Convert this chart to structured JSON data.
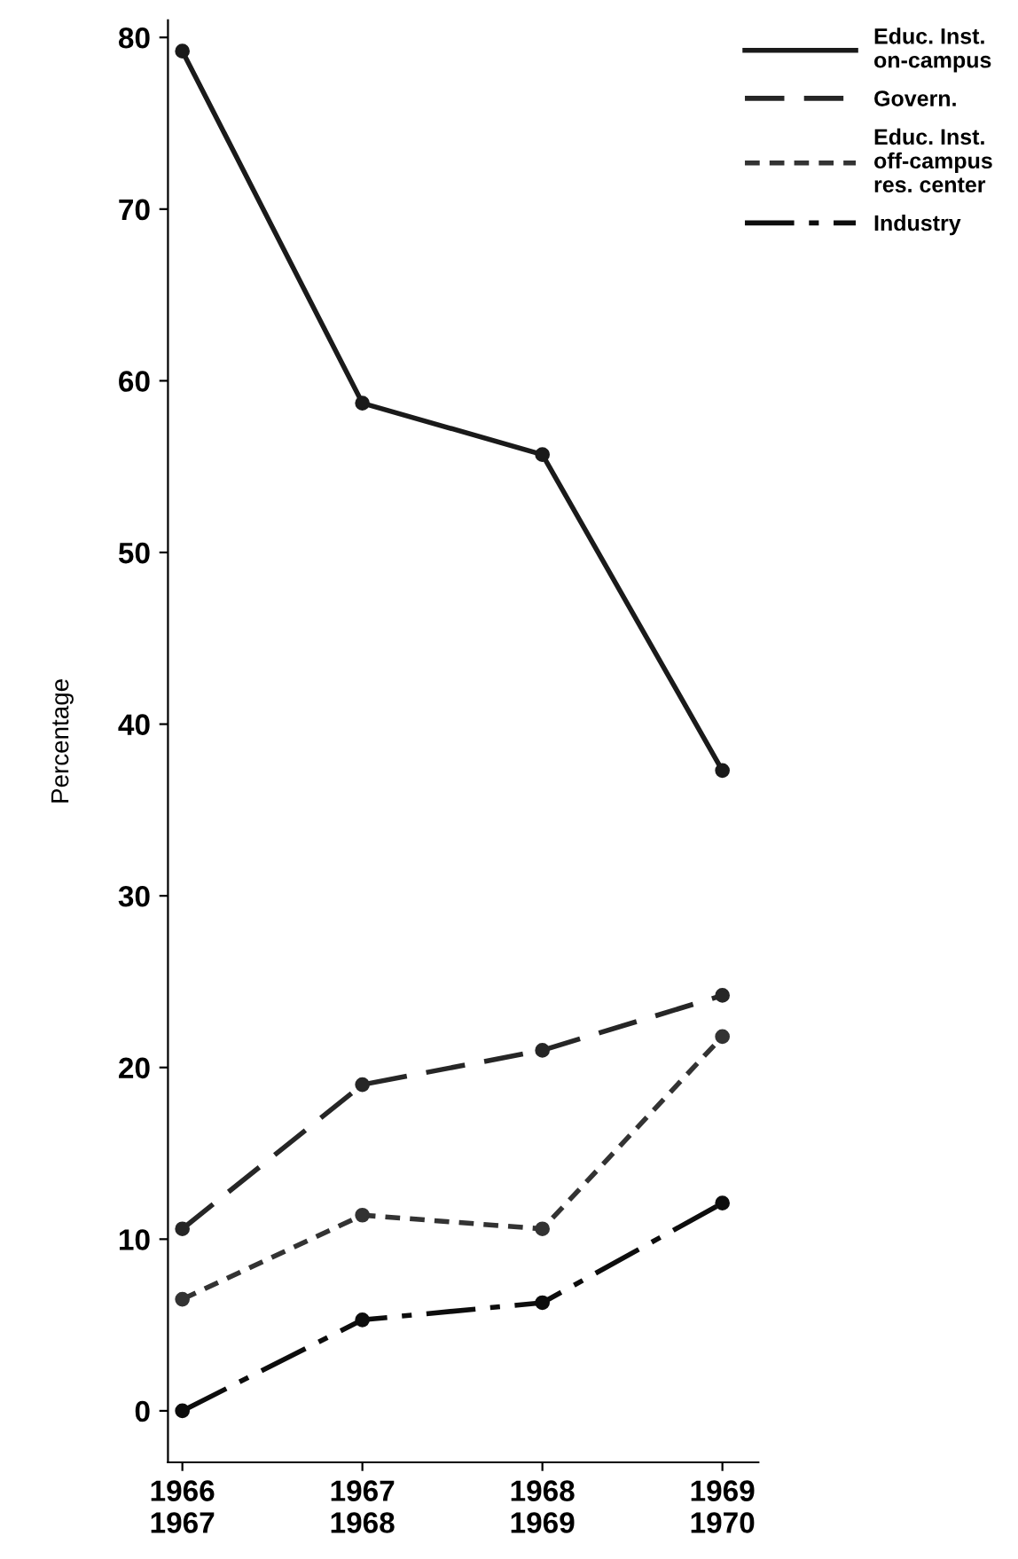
{
  "chart_data": {
    "type": "line",
    "ylabel": "Percentage",
    "categories": [
      "1966\n1967",
      "1967\n1968",
      "1968\n1969",
      "1969\n1970"
    ],
    "series": [
      {
        "name": "Educ. Inst.\non-campus",
        "color": "#1a1a1a",
        "line_style": "solid",
        "values": [
          79.2,
          58.7,
          55.7,
          37.3
        ]
      },
      {
        "name": "Govern.",
        "color": "#262626",
        "line_style": "dashed",
        "values": [
          10.6,
          19.0,
          21.0,
          24.2
        ]
      },
      {
        "name": "Educ. Inst.\noff-campus\nres. center",
        "color": "#333333",
        "line_style": "dotted",
        "values": [
          6.5,
          11.4,
          10.6,
          21.8
        ]
      },
      {
        "name": "Industry",
        "color": "#0d0d0d",
        "line_style": "dashdot",
        "values": [
          0,
          5.3,
          6.3,
          12.1
        ]
      }
    ],
    "ylim": [
      -3,
      81
    ],
    "yticks": [
      0,
      10,
      20,
      30,
      40,
      50,
      60,
      70,
      80
    ],
    "marker": "circle",
    "grid": false,
    "legend": "top right"
  }
}
